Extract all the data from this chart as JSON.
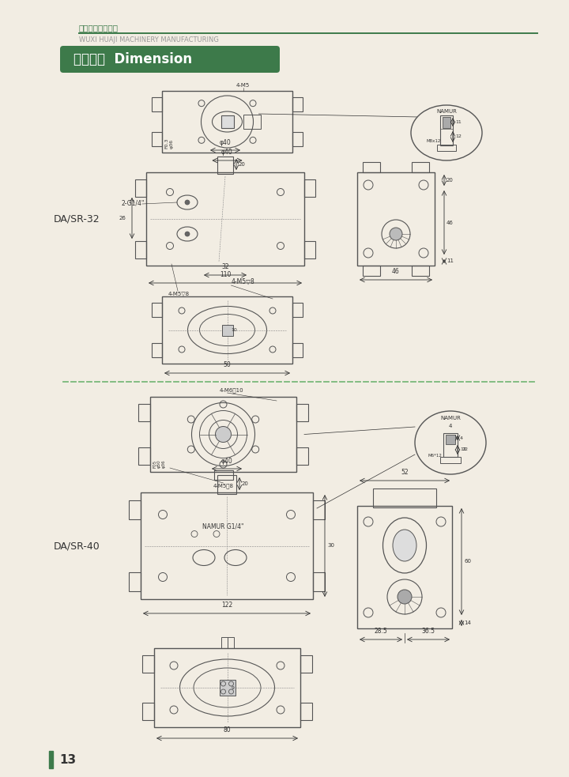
{
  "page_width": 7.2,
  "page_height": 9.83,
  "bg_color": "#f2ede3",
  "green_dark": "#3d7a4a",
  "green_dashed": "#7ab87a",
  "header_chinese": "无锡华机机械制造",
  "header_english": "WUXI HUAJI MACHINERY MANUFACTURING",
  "banner_text": "外形尺尺  Dimension",
  "label_32": "DA/SR-32",
  "label_40": "DA/SR-40",
  "page_num": "13",
  "line_color": "#555555",
  "dim_color": "#333333"
}
